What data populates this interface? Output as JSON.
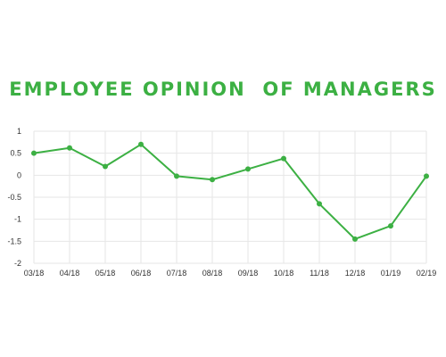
{
  "colors": {
    "accent": "#3cb043",
    "grid": "#e6e6e6",
    "text": "#333333"
  },
  "chart_data": {
    "type": "line",
    "title": "EMPLOYEE OPINION  OF MANAGERS",
    "xlabel": "",
    "ylabel": "",
    "categories": [
      "03/18",
      "04/18",
      "05/18",
      "06/18",
      "07/18",
      "08/18",
      "09/18",
      "10/18",
      "11/18",
      "12/18",
      "01/19",
      "02/19"
    ],
    "series": [
      {
        "values": [
          0.5,
          0.62,
          0.2,
          0.7,
          -0.02,
          -0.1,
          0.14,
          0.38,
          -0.65,
          -1.45,
          -1.15,
          -0.02
        ]
      }
    ],
    "ylim": [
      -2,
      1
    ],
    "yticks": [
      "1",
      "0.5",
      "0",
      "-0.5",
      "-1",
      "-1.5",
      "-2"
    ],
    "grid": true,
    "legend": "none"
  }
}
